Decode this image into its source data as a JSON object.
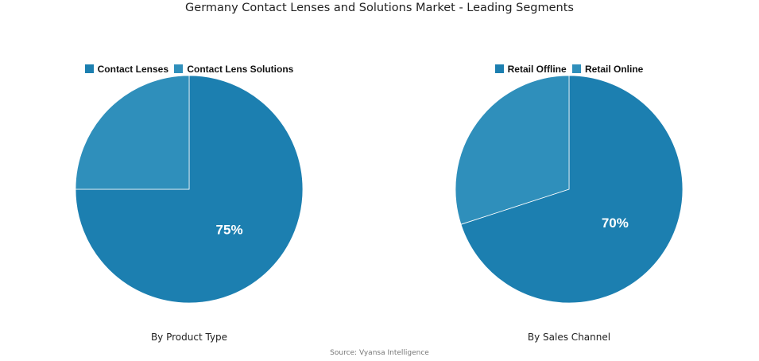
{
  "title": "Germany Contact Lenses and Solutions Market - Leading Segments",
  "source": "Source: Vyansa Intelligence",
  "chart_data": [
    {
      "type": "pie",
      "title": "By Product Type",
      "legend_position": "top",
      "slices": [
        {
          "name": "Contact Lenses",
          "value": 75,
          "label": "75%",
          "color": "#1c7fb0"
        },
        {
          "name": "Contact Lens Solutions",
          "value": 25,
          "label": "",
          "color": "#2f8fbb"
        }
      ]
    },
    {
      "type": "pie",
      "title": "By Sales Channel",
      "legend_position": "top",
      "slices": [
        {
          "name": "Retail Offline",
          "value": 70,
          "label": "70%",
          "color": "#1c7fb0"
        },
        {
          "name": "Retail Online",
          "value": 30,
          "label": "",
          "color": "#2f8fbb"
        }
      ]
    }
  ]
}
